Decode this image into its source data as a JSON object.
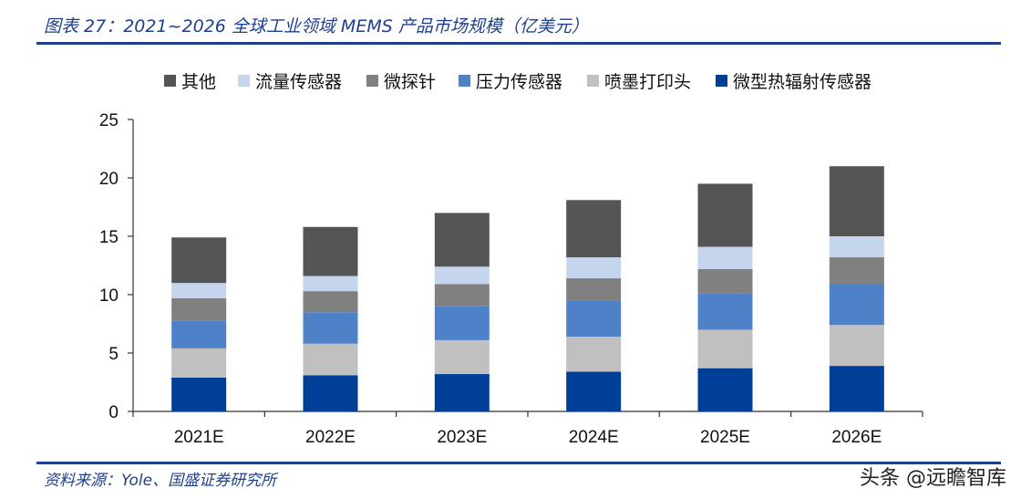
{
  "header": {
    "title": "图表 27：2021~2026 全球工业领域 MEMS 产品市场规模（亿美元）"
  },
  "footer": {
    "source": "资料来源：Yole、国盛证券研究所",
    "watermark": "头条 @远瞻智库"
  },
  "chart_data": {
    "type": "bar",
    "stacked": true,
    "title": "",
    "xlabel": "",
    "ylabel": "",
    "categories": [
      "2021E",
      "2022E",
      "2023E",
      "2024E",
      "2025E",
      "2026E"
    ],
    "ylim": [
      0,
      25
    ],
    "yticks": [
      0,
      5,
      10,
      15,
      20,
      25
    ],
    "grid": false,
    "legend_position": "top",
    "series": [
      {
        "name": "微型热辐射传感器",
        "color": "#003f98",
        "values": [
          2.9,
          3.1,
          3.2,
          3.4,
          3.7,
          3.9
        ]
      },
      {
        "name": "喷墨打印头",
        "color": "#c0c0c0",
        "values": [
          2.5,
          2.7,
          2.9,
          3.0,
          3.3,
          3.5
        ]
      },
      {
        "name": "压力传感器",
        "color": "#4f81c9",
        "values": [
          2.4,
          2.7,
          2.9,
          3.1,
          3.1,
          3.5
        ]
      },
      {
        "name": "微探针",
        "color": "#808080",
        "values": [
          1.9,
          1.8,
          1.9,
          1.9,
          2.1,
          2.3
        ]
      },
      {
        "name": "流量传感器",
        "color": "#c6d5ee",
        "values": [
          1.3,
          1.3,
          1.5,
          1.8,
          1.9,
          1.8
        ]
      },
      {
        "name": "其他",
        "color": "#555555",
        "values": [
          3.9,
          4.2,
          4.6,
          4.9,
          5.4,
          6.0
        ]
      }
    ],
    "legend_order": [
      "其他",
      "流量传感器",
      "微探针",
      "压力传感器",
      "喷墨打印头",
      "微型热辐射传感器"
    ]
  }
}
